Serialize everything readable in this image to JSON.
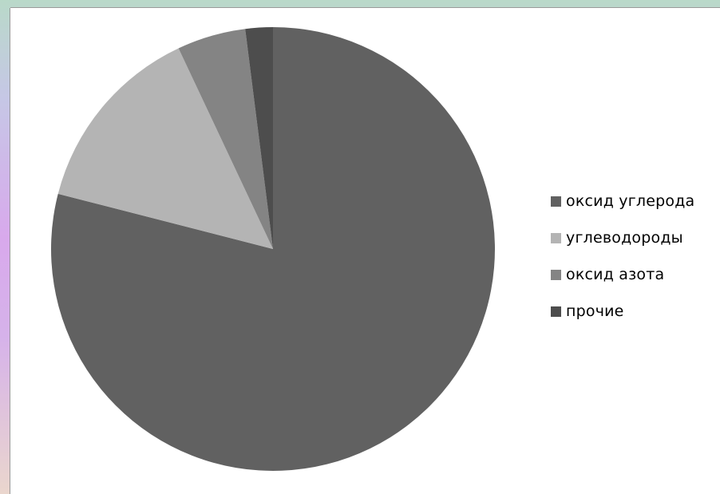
{
  "chart_data": {
    "type": "pie",
    "categories": [
      "оксид углерода",
      "углеводороды",
      "оксид азота",
      "прочие"
    ],
    "values": [
      79,
      14,
      5,
      2
    ],
    "colors": [
      "#616161",
      "#b4b4b4",
      "#848484",
      "#4d4d4d"
    ],
    "start_angle_deg": 0,
    "direction": "clockwise",
    "legend_position": "right"
  },
  "legend": {
    "items": [
      {
        "label": "оксид углерода",
        "color": "#616161"
      },
      {
        "label": "углеводороды",
        "color": "#b4b4b4"
      },
      {
        "label": "оксид азота",
        "color": "#848484"
      },
      {
        "label": "прочие",
        "color": "#4d4d4d"
      }
    ]
  }
}
